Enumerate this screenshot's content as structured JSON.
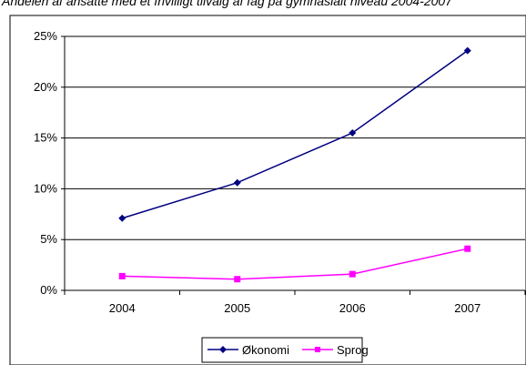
{
  "caption": "Andelen af ansatte med et frivilligt tilvalg af fag på gymnasialt niveau 2004-2007",
  "chart_data": {
    "type": "line",
    "title": "",
    "xlabel": "",
    "ylabel": "",
    "categories": [
      "2004",
      "2005",
      "2006",
      "2007"
    ],
    "ylim": [
      0,
      25
    ],
    "y_ticks": [
      "0%",
      "5%",
      "10%",
      "15%",
      "20%",
      "25%"
    ],
    "y_tick_values": [
      0,
      5,
      10,
      15,
      20,
      25
    ],
    "y_unit": "%",
    "grid": "horizontal",
    "legend_position": "bottom",
    "series": [
      {
        "name": "Økonomi",
        "values": [
          7.1,
          10.6,
          15.5,
          23.6
        ],
        "color": "#000080",
        "marker": "diamond"
      },
      {
        "name": "Sprog",
        "values": [
          1.4,
          1.1,
          1.6,
          4.1
        ],
        "color": "#ff00ff",
        "marker": "square"
      }
    ]
  }
}
